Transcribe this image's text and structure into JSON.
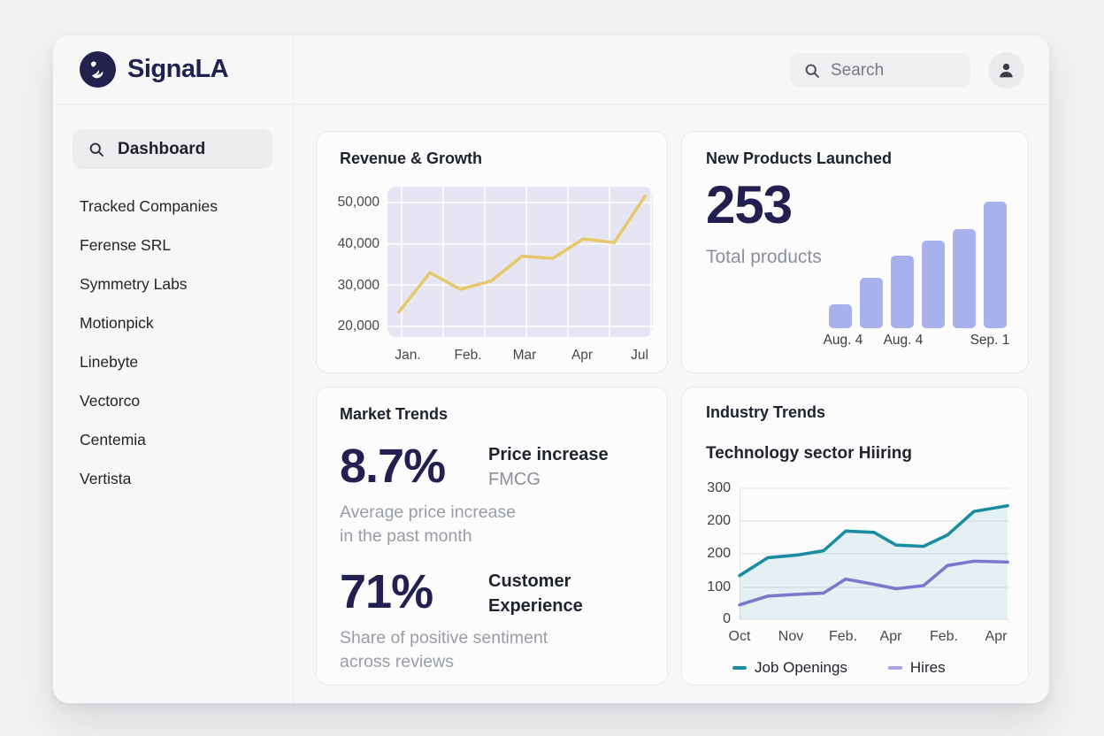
{
  "app": {
    "name": "SignaLA"
  },
  "header": {
    "search_placeholder": "Search"
  },
  "sidebar": {
    "dashboard_label": "Dashboard",
    "items": [
      {
        "label": "Tracked Companies"
      },
      {
        "label": "Ferense SRL"
      },
      {
        "label": "Symmetry Labs"
      },
      {
        "label": "Motionpick"
      },
      {
        "label": "Linebyte"
      },
      {
        "label": "Vectorco"
      },
      {
        "label": "Centemia"
      },
      {
        "label": "Vertista"
      }
    ]
  },
  "cards": {
    "revenue": {
      "title": "Revenue & Growth"
    },
    "products": {
      "title": "New Products Launched",
      "value": "253",
      "subtitle": "Total products"
    },
    "market": {
      "title": "Market Trends",
      "stats": [
        {
          "value": "8.7%",
          "label_line1": "Price increase",
          "label_line2": "FMCG",
          "desc_line1": "Average price increase",
          "desc_line2": "in the past month"
        },
        {
          "value": "71%",
          "label_line1": "Customer",
          "label_line2": "Experience",
          "desc_line1": "Share of positive sentiment",
          "desc_line2": "across reviews"
        }
      ]
    },
    "industry": {
      "title": "Industry Trends",
      "subtitle": "Technology sector Hiiring"
    }
  },
  "colors": {
    "brand_navy": "#232150",
    "card_bg": "#fcfcfd",
    "revenue_line": "#e7c96d",
    "revenue_plot_bg": "#e7e5f3",
    "bar_color": "#a7b1ec",
    "job_openings_teal": "#1b8da2",
    "hires_purple": "#7b78cb"
  },
  "chart_data": [
    {
      "id": "revenue-growth",
      "type": "line",
      "title": "Revenue & Growth",
      "x_tick_labels": [
        "Jan.",
        "Feb.",
        "Mar",
        "Apr",
        "Jul"
      ],
      "y_tick_labels": [
        "50,000",
        "40,000",
        "30,000",
        "20,000"
      ],
      "ylim": [
        20000,
        52500
      ],
      "grid": "on",
      "plot_bg": "#e7e5f3",
      "grid_color": "#ffffff",
      "series": [
        {
          "name": "Revenue",
          "color": "#e7c96d",
          "values": [
            23500,
            33000,
            29000,
            31000,
            37000,
            36500,
            41200,
            40300,
            51500
          ]
        }
      ]
    },
    {
      "id": "new-products-launched",
      "type": "bar",
      "title": "New Products Launched",
      "total": 253,
      "x_tick_labels": [
        "Aug. 4",
        "Aug. 4",
        "Sep. 1"
      ],
      "bar_color": "#a7b1ec",
      "height_ratios": [
        0.19,
        0.4,
        0.57,
        0.69,
        0.78,
        1.0
      ]
    },
    {
      "id": "technology-sector-hiring",
      "type": "area-line",
      "title": "Technology sector Hiiring",
      "x_tick_labels": [
        "Oct",
        "Nov",
        "Feb.",
        "Apr",
        "Feb.",
        "Apr"
      ],
      "y_tick_labels": [
        "300",
        "200",
        "200",
        "100",
        "0"
      ],
      "ylim": [
        0,
        300
      ],
      "grid": "on",
      "legend_position": "bottom",
      "series": [
        {
          "name": "Job Openings",
          "color": "#1b8da2",
          "fill": "rgba(27,141,162,0.10)",
          "values": [
            100,
            141,
            147,
            157,
            202,
            199,
            170,
            167,
            193,
            247,
            260
          ]
        },
        {
          "name": "Hires",
          "color": "#7b78cb",
          "values": [
            33,
            53,
            57,
            60,
            92,
            80,
            70,
            77,
            123,
            133,
            131
          ]
        }
      ],
      "legend": [
        {
          "label": "Job Openings",
          "color": "#1b8da2"
        },
        {
          "label": "Hires",
          "color": "#a8a4e6"
        }
      ]
    }
  ]
}
